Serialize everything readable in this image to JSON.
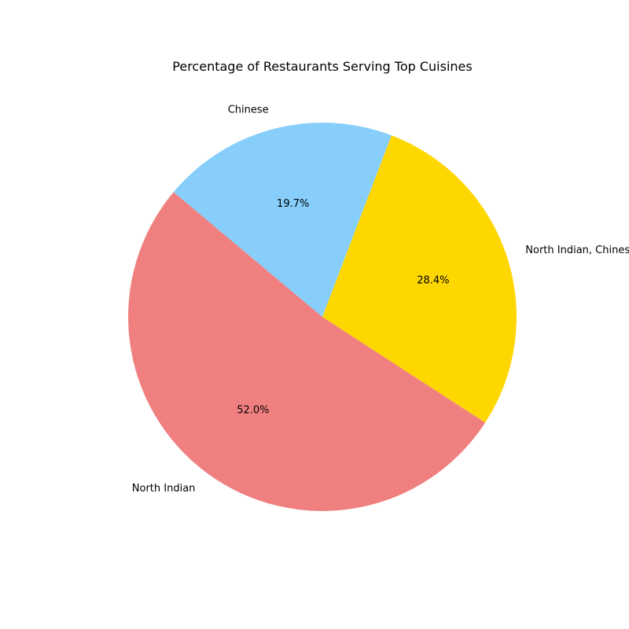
{
  "chart_data": {
    "type": "pie",
    "title": "Percentage of Restaurants Serving Top Cuisines",
    "slices": [
      {
        "label": "North Indian",
        "value": 52.0,
        "pct_label": "52.0%",
        "color": "#f08080"
      },
      {
        "label": "North Indian, Chinese",
        "value": 28.4,
        "pct_label": "28.4%",
        "color": "#ffd700"
      },
      {
        "label": "Chinese",
        "value": 19.7,
        "pct_label": "19.7%",
        "color": "#87cefa"
      }
    ],
    "start_angle_deg": 140,
    "legend": "none"
  }
}
